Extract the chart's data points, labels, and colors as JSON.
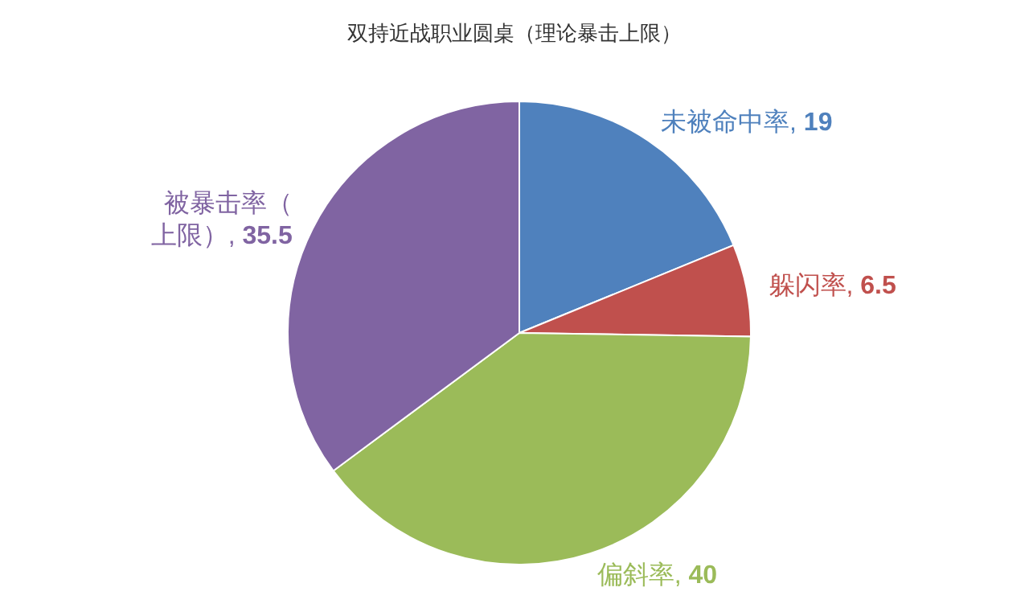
{
  "chart_data": {
    "type": "pie",
    "title": "双持近战职业圆桌（理论暴击上限）",
    "categories": [
      "未被命中率",
      "躲闪率",
      "偏斜率",
      "被暴击率（上限）"
    ],
    "values": [
      19,
      6.5,
      40,
      35.5
    ],
    "colors": [
      "#4f81bd",
      "#c0504d",
      "#9bbb59",
      "#8064a2"
    ],
    "value_labels": [
      ", 19",
      ", 6.5",
      ", 40",
      ", 35.5"
    ]
  }
}
